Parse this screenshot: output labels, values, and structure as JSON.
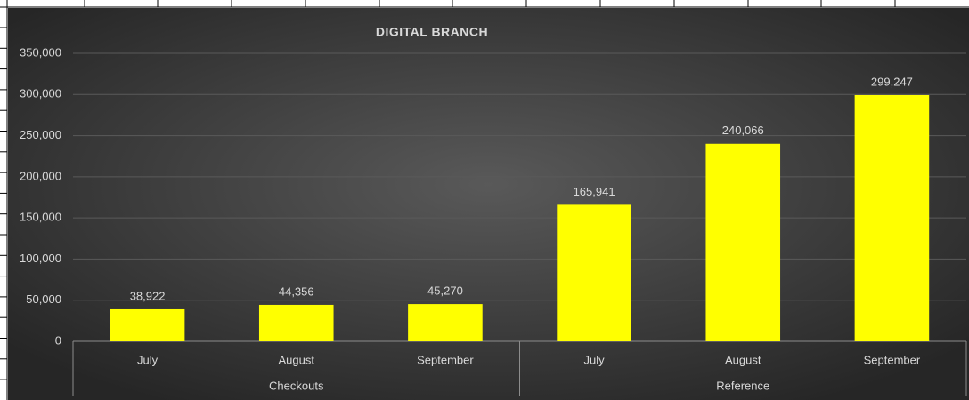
{
  "chart_data": {
    "type": "bar",
    "title": "DIGITAL BRANCH",
    "categories": [
      "July",
      "August",
      "September",
      "July",
      "August",
      "September"
    ],
    "groups": [
      "Checkouts",
      "Reference"
    ],
    "values": [
      38922,
      44356,
      45270,
      165941,
      240066,
      299247
    ],
    "value_labels": [
      "38,922",
      "44,356",
      "45,270",
      "165,941",
      "240,066",
      "299,247"
    ],
    "color": "#ffff00",
    "ylim": [
      0,
      350000
    ],
    "yticks": [
      0,
      {
        "value": 50000,
        "label": "50,000"
      },
      {
        "value": 100000,
        "label": "100,000"
      },
      {
        "value": 150000,
        "label": "150,000"
      },
      {
        "value": 200000,
        "label": "200,000"
      },
      {
        "value": 250000,
        "label": "250,000"
      },
      {
        "value": 300000,
        "label": "300,000"
      },
      {
        "value": 350000,
        "label": "350,000"
      }
    ],
    "grid": true
  }
}
